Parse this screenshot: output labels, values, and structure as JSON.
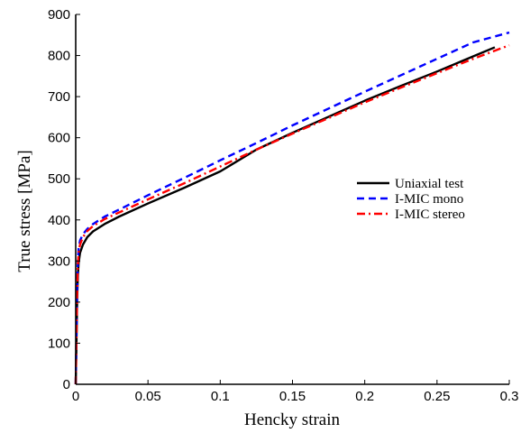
{
  "chart_data": {
    "type": "line",
    "xlabel": "Hencky strain",
    "ylabel": "True stress [MPa]",
    "xlim": [
      0,
      0.3
    ],
    "ylim": [
      0,
      900
    ],
    "x_ticks": [
      "0",
      "0.05",
      "0.1",
      "0.15",
      "0.2",
      "0.25",
      "0.3"
    ],
    "y_ticks": [
      "0",
      "100",
      "200",
      "300",
      "400",
      "500",
      "600",
      "700",
      "800",
      "900"
    ],
    "grid": false,
    "legend_position": "right",
    "series": [
      {
        "name": "Uniaxial test",
        "color": "#000000",
        "style": "solid",
        "x": [
          0,
          0.0006,
          0.001,
          0.0015,
          0.002,
          0.003,
          0.005,
          0.008,
          0.012,
          0.02,
          0.03,
          0.05,
          0.075,
          0.1,
          0.125,
          0.15,
          0.175,
          0.2,
          0.225,
          0.25,
          0.275,
          0.29
        ],
        "y": [
          0,
          120,
          210,
          265,
          295,
          320,
          340,
          358,
          372,
          390,
          408,
          440,
          478,
          518,
          571,
          612,
          651,
          690,
          726,
          761,
          798,
          820
        ]
      },
      {
        "name": "I-MIC mono",
        "color": "#0000ff",
        "style": "dashed",
        "x": [
          0,
          0.0006,
          0.001,
          0.0015,
          0.002,
          0.003,
          0.005,
          0.008,
          0.012,
          0.02,
          0.03,
          0.05,
          0.075,
          0.1,
          0.125,
          0.15,
          0.175,
          0.2,
          0.225,
          0.25,
          0.275,
          0.3
        ],
        "y": [
          0,
          150,
          240,
          300,
          330,
          350,
          365,
          378,
          390,
          408,
          425,
          460,
          502,
          545,
          587,
          630,
          671,
          712,
          752,
          792,
          832,
          856
        ]
      },
      {
        "name": "I-MIC stereo",
        "color": "#ff0000",
        "style": "dashdot",
        "x": [
          0,
          0.0006,
          0.001,
          0.0015,
          0.002,
          0.003,
          0.005,
          0.008,
          0.012,
          0.02,
          0.03,
          0.05,
          0.075,
          0.1,
          0.125,
          0.15,
          0.175,
          0.2,
          0.225,
          0.25,
          0.275,
          0.3
        ],
        "y": [
          0,
          140,
          230,
          290,
          320,
          340,
          358,
          373,
          385,
          402,
          418,
          450,
          489,
          530,
          571,
          610,
          648,
          686,
          722,
          757,
          792,
          825
        ]
      }
    ]
  }
}
